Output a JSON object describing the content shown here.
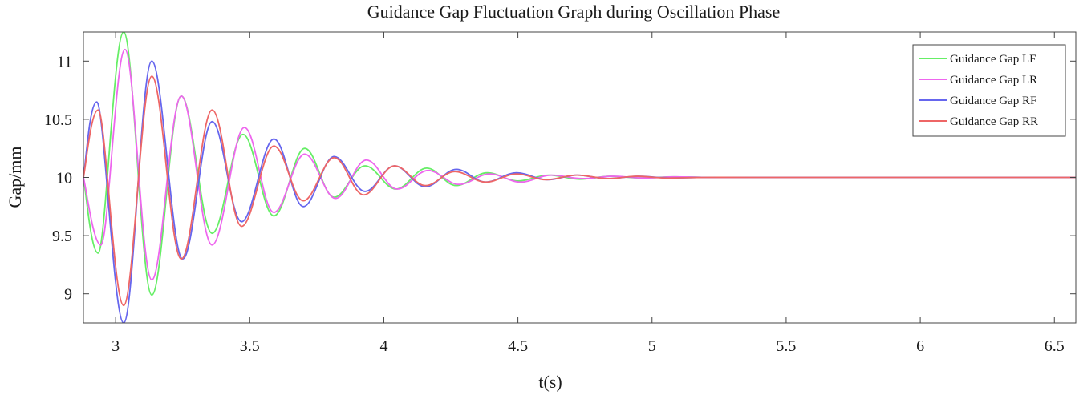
{
  "chart_data": {
    "type": "line",
    "title": "Guidance Gap Fluctuation Graph during Oscillation Phase",
    "xlabel": "t(s)",
    "ylabel": "Gap/mm",
    "xlim": [
      2.88,
      6.58
    ],
    "ylim": [
      8.75,
      11.25
    ],
    "xticks": [
      3,
      3.5,
      4,
      4.5,
      5,
      5.5,
      6,
      6.5
    ],
    "yticks": [
      9,
      9.5,
      10,
      10.5,
      11
    ],
    "xtick_labels": [
      "3",
      "3.5",
      "4",
      "4.5",
      "5",
      "5.5",
      "6",
      "6.5"
    ],
    "ytick_labels": [
      "9",
      "9.5",
      "10",
      "10.5",
      "11"
    ],
    "grid": false,
    "legend_position": "top-right",
    "series": [
      {
        "name": "Guidance Gap LF",
        "color": "#66ee66",
        "x": [
          2.88,
          2.935,
          3.03,
          3.135,
          3.245,
          3.36,
          3.475,
          3.59,
          3.705,
          3.815,
          3.93,
          4.045,
          4.16,
          4.27,
          4.385,
          4.5,
          4.615,
          4.73,
          4.845,
          4.96,
          5.08,
          5.2,
          5.4,
          6.0,
          6.58
        ],
        "y": [
          10.0,
          9.35,
          11.25,
          8.99,
          10.7,
          9.52,
          10.37,
          9.67,
          10.25,
          9.83,
          10.1,
          9.9,
          10.08,
          9.93,
          10.04,
          9.97,
          10.02,
          9.985,
          10.01,
          9.995,
          10.005,
          10.0,
          10.0,
          10.0,
          10.0
        ]
      },
      {
        "name": "Guidance Gap LR",
        "color": "#ee66ee",
        "x": [
          2.88,
          2.945,
          3.035,
          3.135,
          3.245,
          3.36,
          3.48,
          3.59,
          3.705,
          3.82,
          3.935,
          4.05,
          4.165,
          4.28,
          4.395,
          4.51,
          4.625,
          4.74,
          4.855,
          4.97,
          5.09,
          5.2,
          5.4,
          6.0,
          6.58
        ],
        "y": [
          10.0,
          9.42,
          11.1,
          9.12,
          10.7,
          9.42,
          10.43,
          9.7,
          10.2,
          9.82,
          10.15,
          9.9,
          10.06,
          9.94,
          10.03,
          9.96,
          10.02,
          9.99,
          10.01,
          9.995,
          10.005,
          10.0,
          10.0,
          10.0,
          10.0
        ]
      },
      {
        "name": "Guidance Gap RF",
        "color": "#6666ee",
        "x": [
          2.88,
          2.93,
          3.03,
          3.135,
          3.25,
          3.36,
          3.47,
          3.59,
          3.7,
          3.815,
          3.93,
          4.04,
          4.155,
          4.27,
          4.38,
          4.495,
          4.61,
          4.72,
          4.835,
          4.95,
          5.07,
          5.2,
          5.4,
          6.0,
          6.58
        ],
        "y": [
          10.0,
          10.65,
          8.75,
          11.0,
          9.3,
          10.48,
          9.62,
          10.33,
          9.75,
          10.18,
          9.88,
          10.1,
          9.92,
          10.07,
          9.96,
          10.04,
          9.98,
          10.02,
          9.99,
          10.01,
          9.995,
          10.0,
          10.0,
          10.0,
          10.0
        ]
      },
      {
        "name": "Guidance Gap RR",
        "color": "#ee6666",
        "x": [
          2.88,
          2.935,
          3.03,
          3.135,
          3.245,
          3.36,
          3.47,
          3.59,
          3.7,
          3.815,
          3.925,
          4.04,
          4.155,
          4.265,
          4.38,
          4.495,
          4.605,
          4.72,
          4.835,
          4.945,
          5.06,
          5.2,
          5.4,
          6.0,
          6.58
        ],
        "y": [
          10.0,
          10.58,
          8.9,
          10.87,
          9.3,
          10.58,
          9.58,
          10.27,
          9.8,
          10.17,
          9.85,
          10.1,
          9.93,
          10.05,
          9.96,
          10.03,
          9.98,
          10.02,
          9.99,
          10.01,
          9.995,
          10.0,
          10.0,
          10.0,
          10.0
        ]
      }
    ]
  }
}
